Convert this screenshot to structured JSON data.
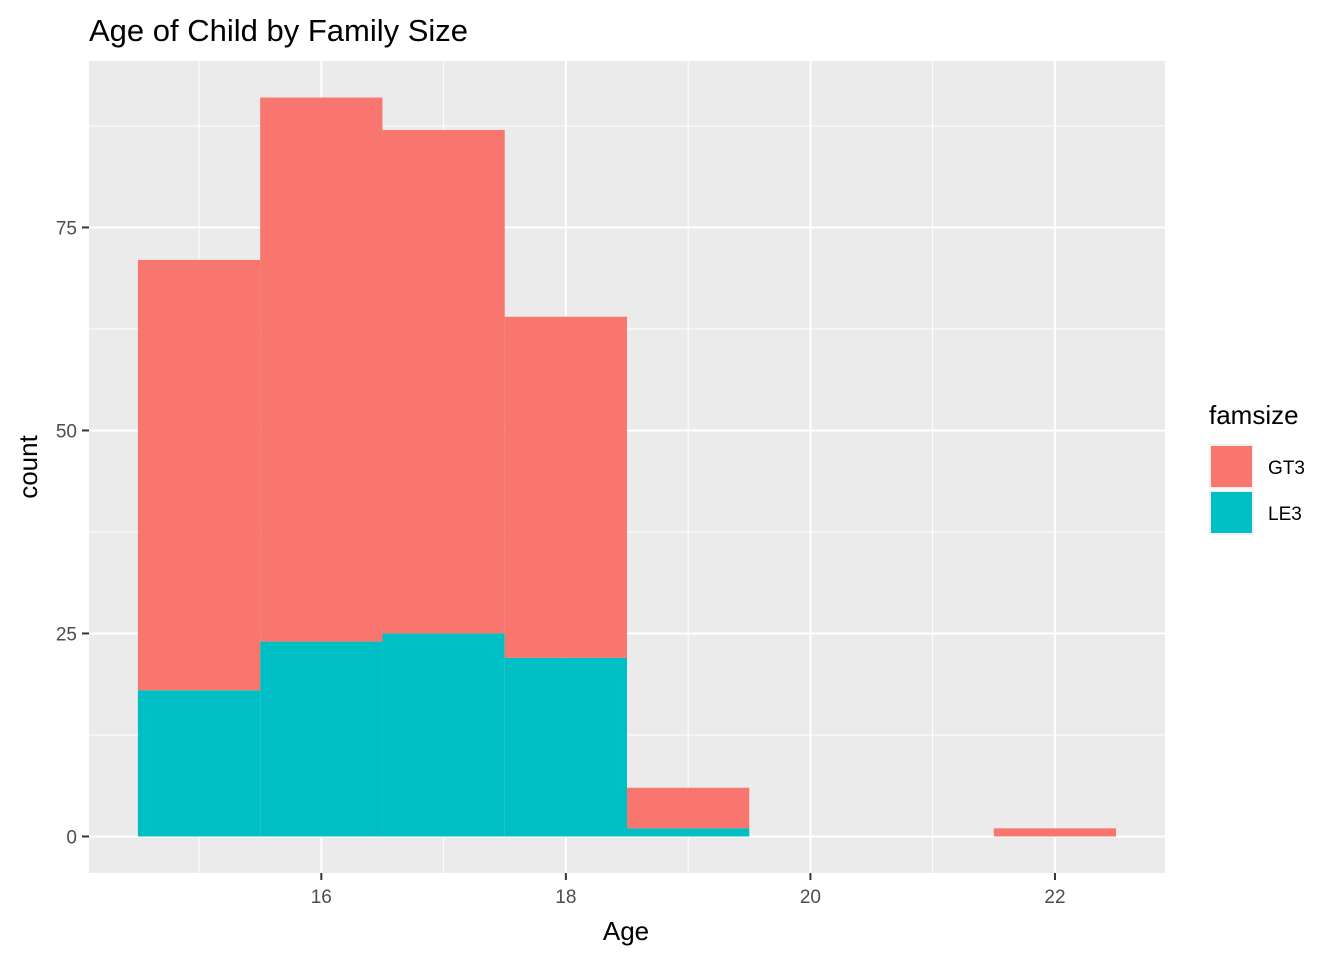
{
  "chart_data": {
    "type": "bar",
    "stacked": true,
    "histogram": true,
    "title": "Age of Child by Family Size",
    "xlabel": "Age",
    "ylabel": "count",
    "bin_width": 1,
    "bins": [
      15,
      16,
      17,
      18,
      19,
      20,
      21,
      22
    ],
    "series": [
      {
        "name": "LE3",
        "color": "#00BFC4",
        "values": [
          18,
          24,
          25,
          22,
          1,
          0,
          0,
          0
        ]
      },
      {
        "name": "GT3",
        "color": "#F8766D",
        "values": [
          53,
          67,
          62,
          42,
          5,
          0,
          0,
          1
        ]
      }
    ],
    "xlim": [
      14.1,
      22.9
    ],
    "ylim": [
      -4.5,
      95.5
    ],
    "x_ticks": [
      16,
      18,
      20,
      22
    ],
    "y_ticks": [
      0,
      25,
      50,
      75
    ],
    "x_tick_labels": [
      "16",
      "18",
      "20",
      "22"
    ],
    "y_tick_labels": [
      "0",
      "25",
      "50",
      "75"
    ],
    "grid": true,
    "panel_background": "#EBEBEB",
    "legend": {
      "title": "famsize",
      "position": "right",
      "entries": [
        {
          "label": "GT3",
          "color": "#F8766D"
        },
        {
          "label": "LE3",
          "color": "#00BFC4"
        }
      ]
    }
  }
}
